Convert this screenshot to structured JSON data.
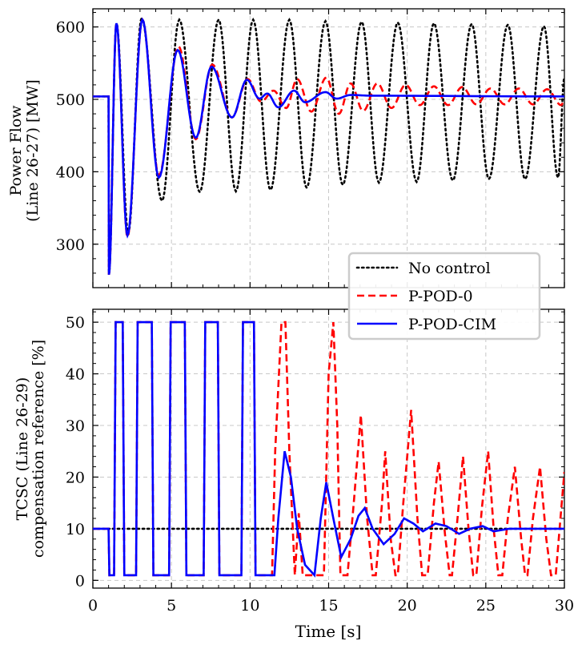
{
  "chart_data": [
    {
      "type": "line",
      "ylabel_line1": "Power Flow",
      "ylabel_line2": "(Line 26-27) [MW]",
      "xlim": [
        0,
        30
      ],
      "ylim": [
        240,
        625
      ],
      "yticks": [
        300,
        400,
        500,
        600
      ],
      "ytick_labels": [
        "300",
        "400",
        "500",
        "600"
      ],
      "grid": true,
      "legend_position": "lower-right",
      "series": [
        {
          "name": "No control",
          "color": "#000000",
          "style": "dotted",
          "baseline": 504,
          "t_start": 1.0,
          "dip": 258,
          "peaks": [
            [
              1.5,
              605
            ],
            [
              2.25,
              315
            ],
            [
              3.1,
              612
            ],
            [
              4.4,
              360
            ],
            [
              5.5,
              610
            ],
            [
              6.8,
              372
            ],
            [
              8.0,
              610
            ],
            [
              9.1,
              373
            ],
            [
              10.2,
              610
            ],
            [
              11.3,
              375
            ],
            [
              12.5,
              610
            ],
            [
              13.6,
              378
            ],
            [
              14.8,
              608
            ],
            [
              15.9,
              382
            ],
            [
              17.1,
              607
            ],
            [
              18.2,
              385
            ],
            [
              19.4,
              606
            ],
            [
              20.6,
              386
            ],
            [
              21.7,
              605
            ],
            [
              22.9,
              388
            ],
            [
              24.1,
              604
            ],
            [
              25.2,
              390
            ],
            [
              26.4,
              603
            ],
            [
              27.5,
              390
            ],
            [
              28.7,
              601
            ],
            [
              29.6,
              392
            ],
            [
              30.0,
              530
            ]
          ]
        },
        {
          "name": "P-POD-0",
          "color": "#ff0000",
          "style": "dashed",
          "baseline": 504,
          "t_start": 1.0,
          "dip": 258,
          "peaks": [
            [
              1.5,
              605
            ],
            [
              2.2,
              310
            ],
            [
              3.15,
              610
            ],
            [
              4.2,
              395
            ],
            [
              5.45,
              573
            ],
            [
              6.55,
              445
            ],
            [
              7.6,
              548
            ],
            [
              8.85,
              475
            ],
            [
              9.85,
              528
            ],
            [
              10.7,
              497
            ],
            [
              11.5,
              512
            ],
            [
              12.3,
              488
            ],
            [
              13.0,
              528
            ],
            [
              13.9,
              483
            ],
            [
              14.85,
              530
            ],
            [
              15.65,
              480
            ],
            [
              16.4,
              522
            ],
            [
              17.2,
              484
            ],
            [
              18.1,
              522
            ],
            [
              19.0,
              488
            ],
            [
              19.9,
              520
            ],
            [
              20.8,
              492
            ],
            [
              21.7,
              518
            ],
            [
              22.6,
              492
            ],
            [
              23.5,
              517
            ],
            [
              24.4,
              493
            ],
            [
              25.3,
              515
            ],
            [
              26.2,
              493
            ],
            [
              27.1,
              515
            ],
            [
              28.0,
              493
            ],
            [
              28.9,
              514
            ],
            [
              29.8,
              492
            ],
            [
              30.0,
              500
            ]
          ]
        },
        {
          "name": "P-POD-CIM",
          "color": "#0000ff",
          "style": "solid",
          "baseline": 504,
          "t_start": 1.0,
          "dip": 258,
          "peaks": [
            [
              1.5,
              605
            ],
            [
              2.2,
              312
            ],
            [
              3.15,
              610
            ],
            [
              4.2,
              392
            ],
            [
              5.4,
              568
            ],
            [
              6.55,
              447
            ],
            [
              7.55,
              545
            ],
            [
              8.85,
              475
            ],
            [
              9.8,
              527
            ],
            [
              10.6,
              501
            ],
            [
              11.1,
              508
            ],
            [
              11.8,
              489
            ],
            [
              12.8,
              512
            ],
            [
              13.5,
              496
            ],
            [
              14.8,
              510
            ],
            [
              15.5,
              501
            ],
            [
              16.4,
              506
            ],
            [
              17.8,
              505
            ],
            [
              30.0,
              504
            ]
          ]
        }
      ]
    },
    {
      "type": "line",
      "ylabel_line1": "TCSC (Line 26-29)",
      "ylabel_line2": "compensation reference [%]",
      "xlabel": "Time [s]",
      "xlim": [
        0,
        30
      ],
      "ylim": [
        -1.5,
        52.5
      ],
      "xticks": [
        0,
        5,
        10,
        15,
        20,
        25,
        30
      ],
      "xtick_labels": [
        "0",
        "5",
        "10",
        "15",
        "20",
        "25",
        "30"
      ],
      "yticks": [
        0,
        10,
        20,
        30,
        40,
        50
      ],
      "ytick_labels": [
        "0",
        "10",
        "20",
        "30",
        "40",
        "50"
      ],
      "grid": true,
      "series": [
        {
          "name": "No control",
          "color": "#000000",
          "style": "dotted",
          "points": [
            [
              0,
              10
            ],
            [
              30,
              10
            ]
          ]
        },
        {
          "name": "P-POD-0",
          "color": "#ff0000",
          "style": "dashed",
          "points": [
            [
              0,
              10
            ],
            [
              1.0,
              10
            ],
            [
              1.05,
              1
            ],
            [
              1.35,
              1
            ],
            [
              1.45,
              50
            ],
            [
              1.9,
              50
            ],
            [
              2.0,
              1
            ],
            [
              2.75,
              1
            ],
            [
              2.85,
              50
            ],
            [
              3.75,
              50
            ],
            [
              3.85,
              1
            ],
            [
              4.85,
              1
            ],
            [
              4.95,
              50
            ],
            [
              5.85,
              50
            ],
            [
              5.95,
              1
            ],
            [
              7.05,
              1
            ],
            [
              7.15,
              50
            ],
            [
              7.95,
              50
            ],
            [
              8.05,
              1
            ],
            [
              9.45,
              1
            ],
            [
              9.55,
              50
            ],
            [
              10.25,
              50
            ],
            [
              10.35,
              1
            ],
            [
              11.4,
              1
            ],
            [
              11.6,
              25
            ],
            [
              12.0,
              50
            ],
            [
              12.25,
              50
            ],
            [
              12.5,
              25
            ],
            [
              12.85,
              1
            ],
            [
              13.1,
              13
            ],
            [
              13.35,
              1
            ],
            [
              14.7,
              1
            ],
            [
              15.0,
              40
            ],
            [
              15.3,
              50
            ],
            [
              15.55,
              30
            ],
            [
              15.75,
              1
            ],
            [
              16.2,
              1
            ],
            [
              16.6,
              15
            ],
            [
              17.05,
              32
            ],
            [
              17.45,
              12
            ],
            [
              17.8,
              1
            ],
            [
              18.0,
              1
            ],
            [
              18.4,
              15
            ],
            [
              18.6,
              25
            ],
            [
              18.95,
              8
            ],
            [
              19.25,
              1
            ],
            [
              19.4,
              1
            ],
            [
              19.75,
              15
            ],
            [
              20.25,
              33
            ],
            [
              20.65,
              12
            ],
            [
              20.95,
              1
            ],
            [
              21.3,
              1
            ],
            [
              21.7,
              15
            ],
            [
              22.0,
              23
            ],
            [
              22.4,
              9
            ],
            [
              22.7,
              1
            ],
            [
              22.85,
              1
            ],
            [
              23.2,
              12
            ],
            [
              23.55,
              24
            ],
            [
              23.9,
              10
            ],
            [
              24.2,
              1
            ],
            [
              24.4,
              1
            ],
            [
              24.75,
              14
            ],
            [
              25.15,
              25
            ],
            [
              25.5,
              10
            ],
            [
              25.8,
              1
            ],
            [
              26.05,
              1
            ],
            [
              26.4,
              12
            ],
            [
              26.85,
              22
            ],
            [
              27.25,
              8
            ],
            [
              27.5,
              1
            ],
            [
              27.65,
              1
            ],
            [
              28.0,
              12
            ],
            [
              28.45,
              22
            ],
            [
              28.85,
              8
            ],
            [
              29.15,
              1
            ],
            [
              29.45,
              1
            ],
            [
              29.75,
              12
            ],
            [
              30.0,
              21
            ]
          ]
        },
        {
          "name": "P-POD-CIM",
          "color": "#0000ff",
          "style": "solid",
          "points": [
            [
              0,
              10
            ],
            [
              1.0,
              10
            ],
            [
              1.05,
              1
            ],
            [
              1.35,
              1
            ],
            [
              1.45,
              50
            ],
            [
              1.9,
              50
            ],
            [
              2.0,
              1
            ],
            [
              2.75,
              1
            ],
            [
              2.85,
              50
            ],
            [
              3.75,
              50
            ],
            [
              3.85,
              1
            ],
            [
              4.85,
              1
            ],
            [
              4.95,
              50
            ],
            [
              5.85,
              50
            ],
            [
              5.95,
              1
            ],
            [
              7.05,
              1
            ],
            [
              7.15,
              50
            ],
            [
              7.95,
              50
            ],
            [
              8.05,
              1
            ],
            [
              9.45,
              1
            ],
            [
              9.55,
              50
            ],
            [
              10.25,
              50
            ],
            [
              10.35,
              1
            ],
            [
              11.55,
              1
            ],
            [
              11.8,
              12
            ],
            [
              12.2,
              25
            ],
            [
              12.6,
              20
            ],
            [
              13.0,
              10
            ],
            [
              13.5,
              3
            ],
            [
              14.1,
              1
            ],
            [
              14.5,
              12
            ],
            [
              14.85,
              19
            ],
            [
              15.3,
              12
            ],
            [
              15.8,
              4.5
            ],
            [
              16.4,
              8
            ],
            [
              16.9,
              12.5
            ],
            [
              17.3,
              14
            ],
            [
              17.8,
              10
            ],
            [
              18.5,
              7
            ],
            [
              19.2,
              9
            ],
            [
              19.8,
              12
            ],
            [
              20.4,
              11
            ],
            [
              21.0,
              9.5
            ],
            [
              21.8,
              11
            ],
            [
              22.5,
              10.5
            ],
            [
              23.3,
              9
            ],
            [
              24.0,
              10
            ],
            [
              24.8,
              10.5
            ],
            [
              25.5,
              9.5
            ],
            [
              26.5,
              10
            ],
            [
              30.0,
              10
            ]
          ]
        }
      ]
    }
  ],
  "legend": {
    "items": [
      {
        "label": "No control",
        "color": "#000000",
        "style": "dotted"
      },
      {
        "label": "P-POD-0",
        "color": "#ff0000",
        "style": "dashed"
      },
      {
        "label": "P-POD-CIM",
        "color": "#0000ff",
        "style": "solid"
      }
    ]
  }
}
